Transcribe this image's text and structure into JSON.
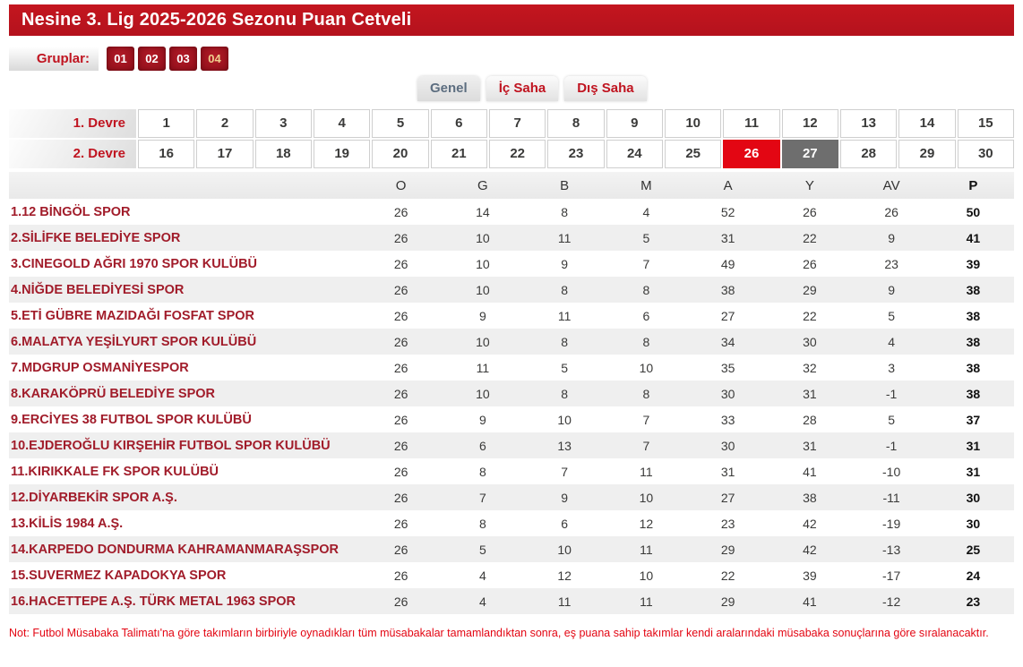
{
  "header": {
    "title": "Nesine 3. Lig 2025-2026 Sezonu Puan Cetveli"
  },
  "groups": {
    "label": "Gruplar:",
    "items": [
      {
        "label": "01",
        "active": false
      },
      {
        "label": "02",
        "active": false
      },
      {
        "label": "03",
        "active": false
      },
      {
        "label": "04",
        "active": true
      }
    ]
  },
  "tabs": [
    {
      "id": "genel",
      "label": "Genel",
      "active": true
    },
    {
      "id": "ic-saha",
      "label": "İç Saha",
      "active": false
    },
    {
      "id": "dis-saha",
      "label": "Dış Saha",
      "active": false
    }
  ],
  "weeks": {
    "first_half_label": "1. Devre",
    "second_half_label": "2. Devre",
    "first_half": [
      1,
      2,
      3,
      4,
      5,
      6,
      7,
      8,
      9,
      10,
      11,
      12,
      13,
      14,
      15
    ],
    "second_half": [
      16,
      17,
      18,
      19,
      20,
      21,
      22,
      23,
      24,
      25,
      26,
      27,
      28,
      29,
      30
    ],
    "selected_week": 26,
    "secondary_week": 27
  },
  "table": {
    "columns": [
      "O",
      "G",
      "B",
      "M",
      "A",
      "Y",
      "AV",
      "P"
    ],
    "rows": [
      {
        "team": "1.12 BİNGÖL SPOR",
        "values": [
          26,
          14,
          8,
          4,
          52,
          26,
          26,
          50
        ]
      },
      {
        "team": "2.SİLİFKE BELEDİYE SPOR",
        "values": [
          26,
          10,
          11,
          5,
          31,
          22,
          9,
          41
        ]
      },
      {
        "team": "3.CINEGOLD AĞRI 1970 SPOR KULÜBÜ",
        "values": [
          26,
          10,
          9,
          7,
          49,
          26,
          23,
          39
        ]
      },
      {
        "team": "4.NİĞDE BELEDİYESİ SPOR",
        "values": [
          26,
          10,
          8,
          8,
          38,
          29,
          9,
          38
        ]
      },
      {
        "team": "5.ETİ GÜBRE MAZIDAĞI FOSFAT SPOR",
        "values": [
          26,
          9,
          11,
          6,
          27,
          22,
          5,
          38
        ]
      },
      {
        "team": "6.MALATYA YEŞİLYURT SPOR KULÜBÜ",
        "values": [
          26,
          10,
          8,
          8,
          34,
          30,
          4,
          38
        ]
      },
      {
        "team": "7.MDGRUP OSMANİYESPOR",
        "values": [
          26,
          11,
          5,
          10,
          35,
          32,
          3,
          38
        ]
      },
      {
        "team": "8.KARAKÖPRÜ BELEDİYE SPOR",
        "values": [
          26,
          10,
          8,
          8,
          30,
          31,
          -1,
          38
        ]
      },
      {
        "team": "9.ERCİYES 38 FUTBOL SPOR KULÜBÜ",
        "values": [
          26,
          9,
          10,
          7,
          33,
          28,
          5,
          37
        ]
      },
      {
        "team": "10.EJDEROĞLU KIRŞEHİR FUTBOL SPOR KULÜBÜ",
        "values": [
          26,
          6,
          13,
          7,
          30,
          31,
          -1,
          31
        ]
      },
      {
        "team": "11.KIRIKKALE FK SPOR KULÜBÜ",
        "values": [
          26,
          8,
          7,
          11,
          31,
          41,
          -10,
          31
        ]
      },
      {
        "team": "12.DİYARBEKİR SPOR A.Ş.",
        "values": [
          26,
          7,
          9,
          10,
          27,
          38,
          -11,
          30
        ]
      },
      {
        "team": "13.KİLİS 1984 A.Ş.",
        "values": [
          26,
          8,
          6,
          12,
          23,
          42,
          -19,
          30
        ]
      },
      {
        "team": "14.KARPEDO DONDURMA KAHRAMANMARAŞSPOR",
        "values": [
          26,
          5,
          10,
          11,
          29,
          42,
          -13,
          25
        ]
      },
      {
        "team": "15.SUVERMEZ KAPADOKYA SPOR",
        "values": [
          26,
          4,
          12,
          10,
          22,
          39,
          -17,
          24
        ]
      },
      {
        "team": "16.HACETTEPE A.Ş. TÜRK METAL 1963 SPOR",
        "values": [
          26,
          4,
          11,
          11,
          29,
          41,
          -12,
          23
        ]
      }
    ]
  },
  "note": "Not: Futbol Müsabaka Talimatı'na göre takımların birbiriyle oynadıkları tüm müsabakalar tamamlandıktan sonra, eş puana sahip takımlar kendi aralarındaki müsabaka sonuçlarına göre sıralanacaktır.",
  "colors": {
    "header_red": "#bd1421",
    "team_name_red": "#a11c2a",
    "selected_week_red": "#e30613",
    "secondary_week_gray": "#6e6e6e",
    "tab_text_red": "#c01420",
    "row_stripe_gray": "#efefef"
  }
}
